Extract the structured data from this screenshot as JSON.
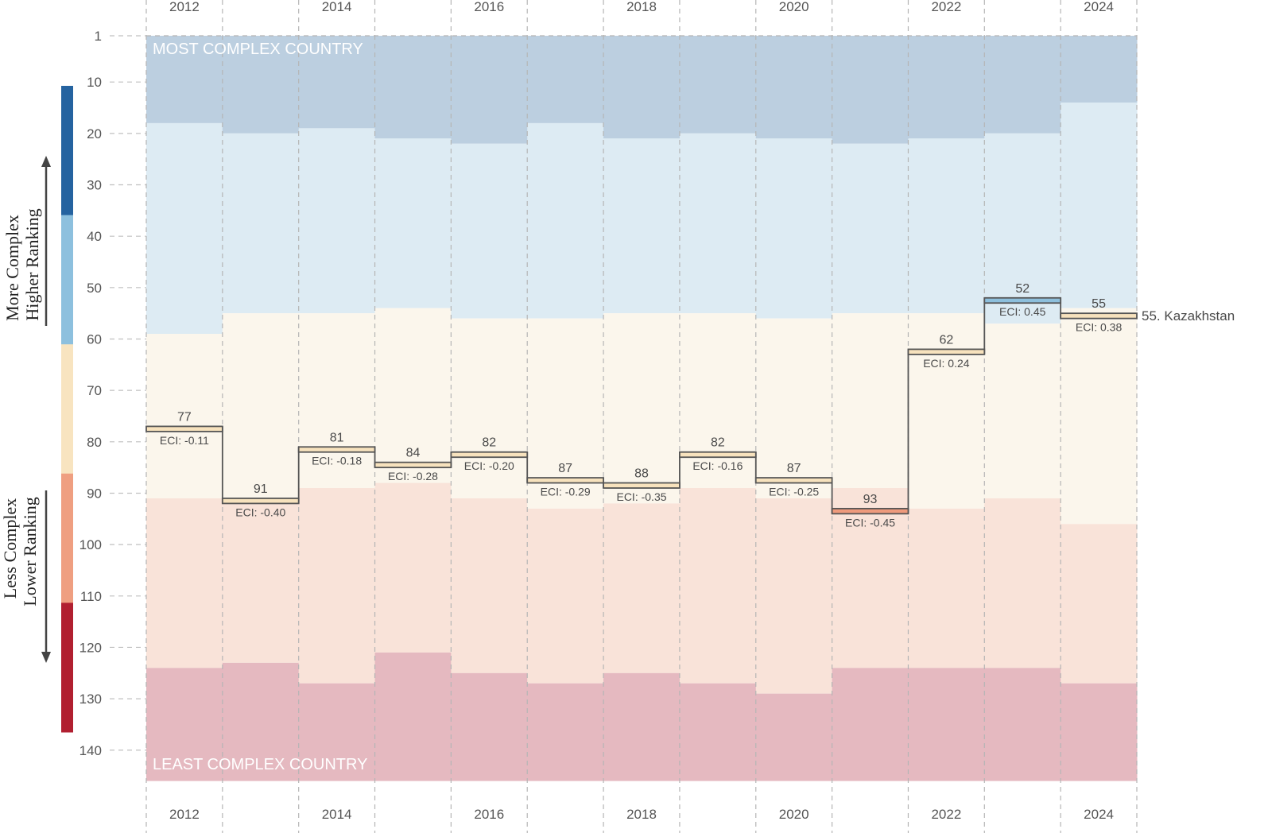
{
  "chart_data": {
    "type": "step",
    "title": "",
    "country": "Kazakhstan",
    "end_label": "55. Kazakhstan",
    "years": [
      2012,
      2013,
      2014,
      2015,
      2016,
      2017,
      2018,
      2019,
      2020,
      2021,
      2022,
      2023,
      2024
    ],
    "year_tick_labels": [
      "2012",
      "2014",
      "2016",
      "2018",
      "2020",
      "2022",
      "2024"
    ],
    "ranks": [
      77,
      91,
      81,
      84,
      82,
      87,
      88,
      82,
      87,
      93,
      62,
      52,
      55
    ],
    "rank_labels": [
      "77",
      "91",
      "81",
      "84",
      "82",
      "87",
      "88",
      "82",
      "87",
      "93",
      "62",
      "52",
      "55"
    ],
    "eci": [
      -0.11,
      -0.4,
      -0.18,
      -0.28,
      -0.2,
      -0.29,
      -0.35,
      -0.16,
      -0.25,
      -0.45,
      0.24,
      0.45,
      0.38
    ],
    "eci_labels": [
      "ECI: -0.11",
      "ECI: -0.40",
      "ECI: -0.18",
      "ECI: -0.28",
      "ECI: -0.20",
      "ECI: -0.29",
      "ECI: -0.35",
      "ECI: -0.16",
      "ECI: -0.25",
      "ECI: -0.45",
      "ECI: 0.24",
      "ECI: 0.45",
      "ECI: 0.38"
    ],
    "marker_tier": [
      "mid",
      "mid",
      "mid",
      "mid",
      "mid",
      "mid",
      "mid",
      "mid",
      "mid",
      "low",
      "mid",
      "high",
      "mid"
    ],
    "band_boundaries": {
      "top_band_end": [
        18,
        20,
        19,
        21,
        22,
        18,
        21,
        20,
        21,
        22,
        21,
        20,
        14
      ],
      "upper_band_end": [
        59,
        55,
        55,
        54,
        56,
        56,
        55,
        55,
        56,
        55,
        55,
        57,
        54
      ],
      "middle_band_end": [
        91,
        91,
        89,
        88,
        91,
        93,
        92,
        89,
        91,
        89,
        93,
        91,
        96
      ],
      "lower_band_end": [
        124,
        123,
        127,
        121,
        125,
        127,
        125,
        127,
        129,
        124,
        124,
        124,
        127
      ]
    },
    "band_colors": {
      "top": "#bccfe0",
      "upper": "#ddebf3",
      "middle": "#fbf6ec",
      "lower": "#f9e3d9",
      "bottom": "#e5b9c0"
    },
    "marker_colors": {
      "high": "#8dbfdc",
      "mid": "#f7e2bd",
      "low": "#ee9a7c"
    },
    "y_axis": {
      "reversed": true,
      "ticks": [
        1,
        10,
        20,
        30,
        40,
        50,
        60,
        70,
        80,
        90,
        100,
        110,
        120,
        130,
        140
      ],
      "tick_labels": [
        "1",
        "10",
        "20",
        "30",
        "40",
        "50",
        "60",
        "70",
        "80",
        "90",
        "100",
        "110",
        "120",
        "130",
        "140"
      ],
      "range": [
        1,
        146
      ]
    },
    "band_labels": {
      "top": "MOST COMPLEX COUNTRY",
      "bottom": "LEAST COMPLEX COUNTRY"
    },
    "legend": {
      "placement": "left",
      "scale_colors": [
        "#2563a0",
        "#8dc0de",
        "#f8e4c0",
        "#ef9f81",
        "#b11f30"
      ],
      "upper_text": [
        "More Complex",
        "Higher Ranking"
      ],
      "lower_text": [
        "Less Complex",
        "Lower Ranking"
      ]
    },
    "grid": true
  }
}
